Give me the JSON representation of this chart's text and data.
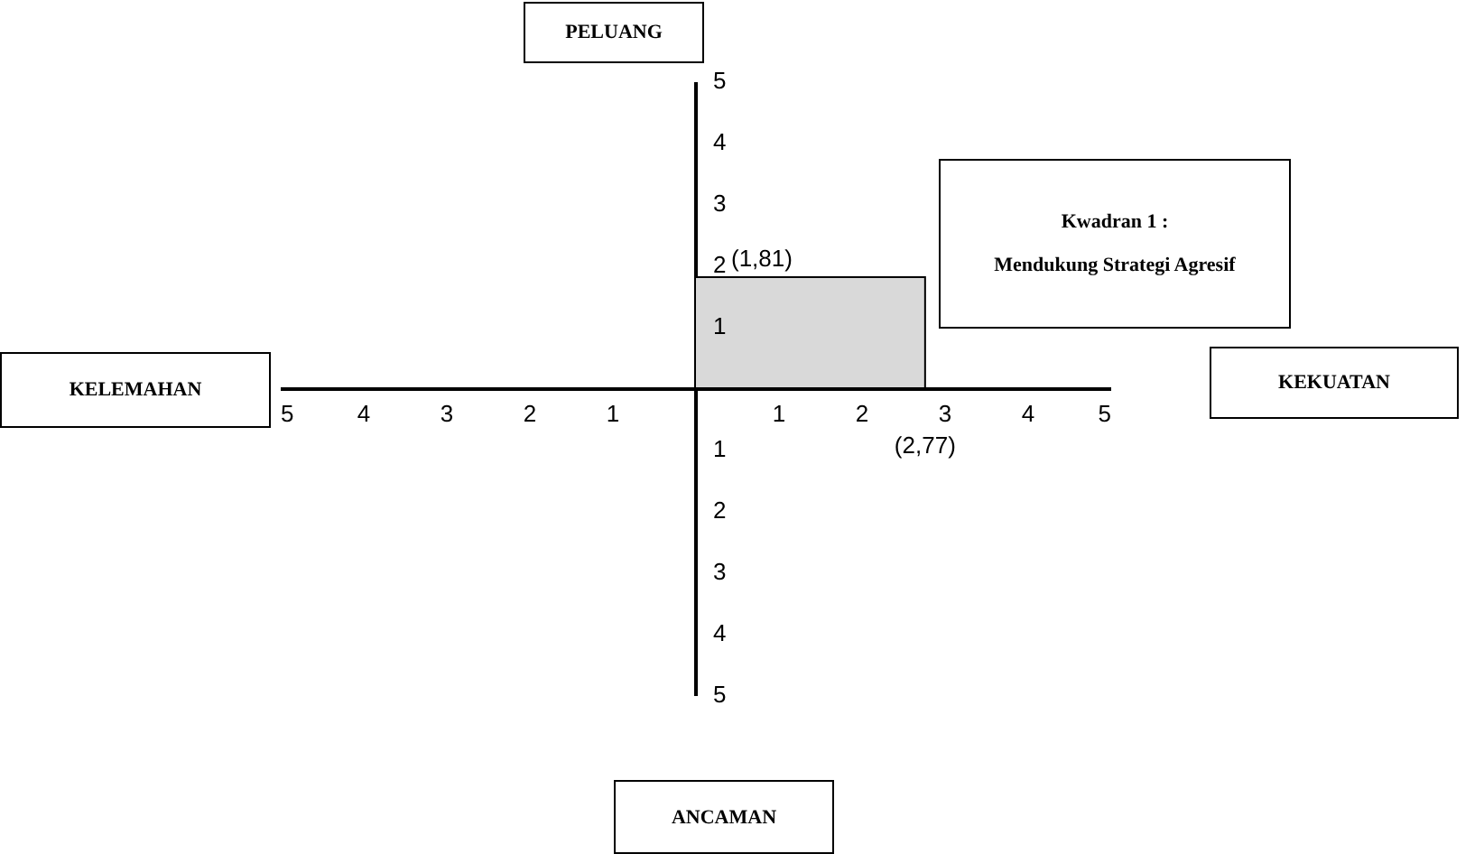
{
  "chart_data": {
    "type": "area",
    "series": [
      {
        "color": "#d9d9d9",
        "x": [
          0,
          2.77
        ],
        "values": [
          1.81,
          1.81
        ]
      }
    ],
    "xlim": [
      -5,
      5
    ],
    "ylim": [
      -5,
      5
    ],
    "xticks": [
      {
        "value": -5,
        "label": "5"
      },
      {
        "value": -4,
        "label": "4"
      },
      {
        "value": -3,
        "label": "3"
      },
      {
        "value": -2,
        "label": "2"
      },
      {
        "value": -1,
        "label": "1"
      },
      1,
      2,
      3,
      4,
      5
    ],
    "yticks": [
      {
        "value": -5,
        "label": "5"
      },
      {
        "value": -4,
        "label": "4"
      },
      {
        "value": -3,
        "label": "3"
      },
      {
        "value": -2,
        "label": "2"
      },
      {
        "value": -1,
        "label": "1"
      },
      1,
      2,
      3,
      4,
      5
    ],
    "annotations": [
      "PELUANG",
      "KELEMAHAN",
      "KEKUATAN",
      "ANCAMAN",
      "Kwadran 1 :",
      "Mendukung Strategi Agresif",
      {
        "text": "(1,81)",
        "x": 0,
        "y": 1.81
      },
      {
        "text": "(2,77)",
        "x": 2.77,
        "y": 0
      }
    ],
    "grid": false
  }
}
